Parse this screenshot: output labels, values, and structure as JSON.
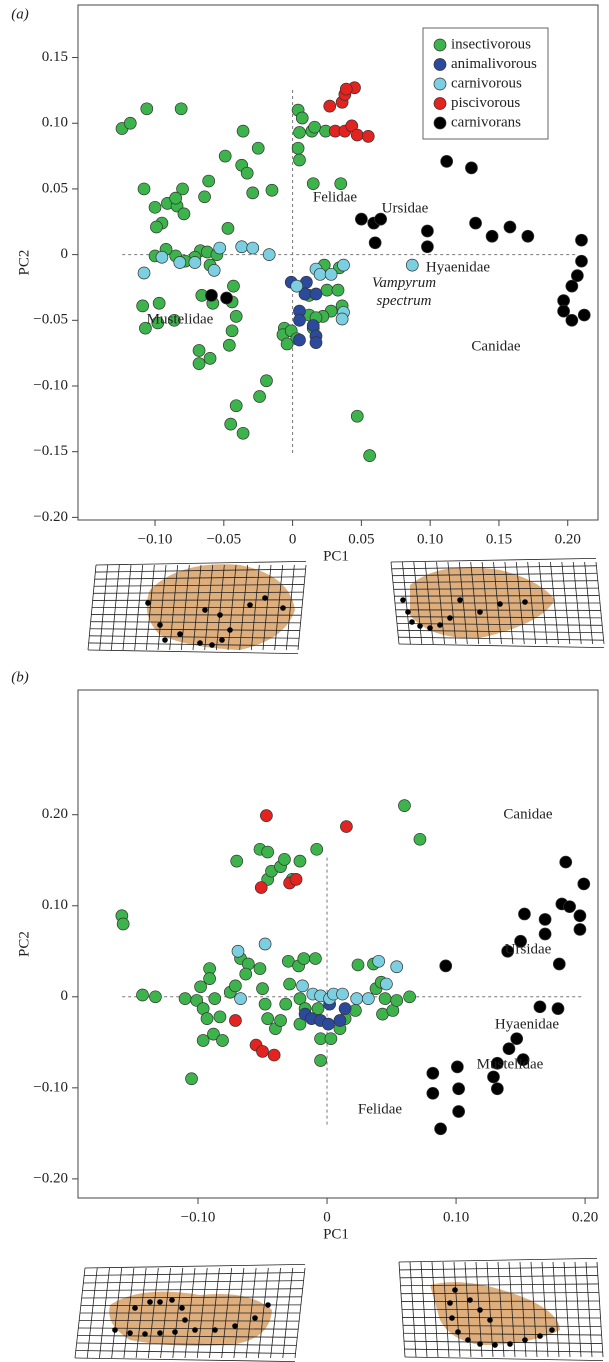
{
  "chart_data": [
    {
      "type": "scatter",
      "panel_label": "(a)",
      "x_label": "PC1",
      "y_label": "PC2",
      "xlim": [
        -0.156,
        0.222
      ],
      "ylim": [
        -0.202,
        0.19
      ],
      "xticks": [
        {
          "value": -0.1,
          "label": "−0.10"
        },
        {
          "value": -0.05,
          "label": "−0.05"
        },
        0,
        0.05,
        {
          "value": 0.1,
          "label": "0.10"
        },
        0.15,
        {
          "value": 0.2,
          "label": "0.20"
        }
      ],
      "yticks": [
        {
          "value": -0.2,
          "label": "−0.20"
        },
        {
          "value": -0.15,
          "label": "−0.15"
        },
        {
          "value": -0.1,
          "label": "−0.10"
        },
        {
          "value": -0.05,
          "label": "−0.05"
        },
        0,
        0.05,
        {
          "value": 0.1,
          "label": "0.10"
        },
        0.15
      ],
      "legend": "upper right",
      "annotations": [
        {
          "text": "Felidae"
        },
        {
          "text": "Ursidae"
        },
        {
          "text": "Hyaenidae"
        },
        {
          "text": "Vampyrum spectrum",
          "style": "italic"
        },
        {
          "text": "Mustelidae"
        },
        {
          "text": "Canidae"
        }
      ],
      "series": [
        {
          "name": "insectivorous",
          "color": "#3cb44b",
          "x": [
            -0.124,
            -0.118,
            -0.106,
            -0.081,
            -0.108,
            -0.1,
            -0.091,
            -0.084,
            -0.079,
            -0.08,
            -0.085,
            -0.095,
            -0.099,
            -0.064,
            -0.061,
            -0.049,
            -0.037,
            -0.033,
            -0.036,
            -0.025,
            -0.015,
            -0.029,
            -0.047,
            -0.067,
            -0.062,
            -0.055,
            -0.071,
            -0.06,
            -0.078,
            -0.085,
            -0.092,
            -0.1,
            -0.109,
            -0.097,
            -0.098,
            -0.107,
            -0.086,
            -0.066,
            -0.058,
            -0.043,
            -0.044,
            -0.041,
            -0.044,
            -0.046,
            -0.068,
            -0.068,
            -0.06,
            -0.019,
            -0.024,
            -0.041,
            -0.045,
            -0.036,
            0.004,
            0.005,
            0.014,
            0.007,
            0.016,
            0.024,
            0.004,
            0.005,
            0.015,
            0.035,
            0.023,
            0.034,
            0.025,
            0.036,
            0.028,
            0.022,
            0.015,
            0.012,
            -0.006,
            -0.007,
            -0.001,
            0.003,
            -0.004,
            0.017,
            0.047,
            0.056,
            0.012,
            0.033
          ],
          "values": [
            0.096,
            0.1,
            0.111,
            0.111,
            0.05,
            0.036,
            0.039,
            0.037,
            0.031,
            0.05,
            0.043,
            0.024,
            0.021,
            0.044,
            0.056,
            0.075,
            0.068,
            0.062,
            0.094,
            0.081,
            0.049,
            0.047,
            0.02,
            0.003,
            0.002,
            0.0,
            -0.002,
            -0.008,
            -0.005,
            -0.001,
            0.004,
            -0.001,
            -0.039,
            -0.037,
            -0.052,
            -0.056,
            -0.05,
            -0.031,
            -0.037,
            -0.024,
            -0.036,
            -0.047,
            -0.058,
            -0.069,
            -0.073,
            -0.083,
            -0.079,
            -0.096,
            -0.108,
            -0.115,
            -0.129,
            -0.136,
            0.11,
            0.093,
            0.094,
            0.104,
            0.097,
            0.094,
            0.081,
            0.072,
            0.054,
            0.054,
            -0.008,
            -0.01,
            -0.027,
            -0.039,
            -0.043,
            -0.047,
            -0.056,
            -0.046,
            -0.056,
            -0.061,
            -0.058,
            -0.064,
            -0.068,
            -0.048,
            -0.123,
            -0.153,
            -0.031,
            -0.027
          ]
        },
        {
          "name": "animalivorous",
          "color": "#2b4a9e",
          "x": [
            -0.001,
            0.01,
            0.009,
            0.017,
            0.005,
            0.005,
            0.015,
            0.017,
            0.017,
            0.005
          ],
          "values": [
            -0.021,
            -0.021,
            -0.03,
            -0.03,
            -0.043,
            -0.05,
            -0.054,
            -0.062,
            -0.067,
            -0.065
          ]
        },
        {
          "name": "carnivorous",
          "color": "#7ccfe0",
          "x": [
            -0.108,
            -0.095,
            -0.082,
            -0.071,
            -0.057,
            -0.053,
            -0.037,
            -0.029,
            -0.017,
            0.003,
            0.017,
            0.02,
            0.028,
            0.037,
            0.037,
            0.036,
            0.087
          ],
          "values": [
            -0.014,
            -0.002,
            -0.006,
            -0.006,
            -0.012,
            0.005,
            0.006,
            0.005,
            0.0,
            -0.024,
            -0.011,
            -0.015,
            -0.015,
            -0.008,
            -0.044,
            -0.049,
            -0.008
          ]
        },
        {
          "name": "piscivorous",
          "color": "#e3231f",
          "x": [
            0.027,
            0.036,
            0.038,
            0.045,
            0.039,
            0.031,
            0.038,
            0.043,
            0.047,
            0.055
          ],
          "values": [
            0.113,
            0.116,
            0.122,
            0.127,
            0.126,
            0.094,
            0.094,
            0.098,
            0.091,
            0.09
          ]
        },
        {
          "name": "carnivorans",
          "color": "#000000",
          "x": [
            -0.059,
            -0.048,
            0.05,
            0.059,
            0.064,
            0.06,
            0.098,
            0.098,
            0.112,
            0.13,
            0.133,
            0.145,
            0.158,
            0.171,
            0.21,
            0.21,
            0.207,
            0.203,
            0.197,
            0.197,
            0.203,
            0.212
          ],
          "values": [
            -0.031,
            -0.033,
            0.027,
            0.024,
            0.027,
            0.009,
            0.018,
            0.006,
            0.071,
            0.066,
            0.024,
            0.014,
            0.021,
            0.014,
            0.011,
            -0.005,
            -0.016,
            -0.024,
            -0.035,
            -0.043,
            -0.05,
            -0.046
          ]
        }
      ]
    },
    {
      "type": "scatter",
      "panel_label": "(b)",
      "x_label": "PC1",
      "y_label": "PC2",
      "xlim": [
        -0.193,
        0.21
      ],
      "ylim": [
        -0.221,
        0.337
      ],
      "xticks": [
        {
          "value": -0.1,
          "label": "−0.10"
        },
        0,
        {
          "value": 0.1,
          "label": "0.10"
        },
        {
          "value": 0.2,
          "label": "0.20"
        }
      ],
      "yticks": [
        {
          "value": -0.2,
          "label": "−0.20"
        },
        {
          "value": -0.1,
          "label": "−0.10"
        },
        0,
        {
          "value": 0.1,
          "label": "0.10"
        },
        {
          "value": 0.2,
          "label": "0.20"
        }
      ],
      "legend": false,
      "annotations": [
        {
          "text": "Canidae"
        },
        {
          "text": "Ursidae"
        },
        {
          "text": "Hyaenidae"
        },
        {
          "text": "Mustelidae"
        },
        {
          "text": "Felidae"
        }
      ],
      "series": [
        {
          "name": "insectivorous",
          "color": "#3cb44b",
          "x": [
            -0.159,
            -0.158,
            -0.143,
            -0.133,
            -0.105,
            -0.11,
            -0.101,
            -0.091,
            -0.091,
            -0.098,
            -0.096,
            -0.093,
            -0.088,
            -0.096,
            -0.087,
            -0.083,
            -0.081,
            -0.075,
            -0.071,
            -0.067,
            -0.061,
            -0.063,
            -0.07,
            -0.052,
            -0.046,
            -0.046,
            -0.043,
            -0.036,
            -0.033,
            -0.021,
            -0.008,
            -0.027,
            -0.052,
            -0.05,
            -0.048,
            -0.046,
            -0.04,
            -0.03,
            -0.022,
            -0.029,
            -0.021,
            -0.032,
            -0.036,
            -0.021,
            -0.017,
            -0.007,
            -0.005,
            -0.005,
            0.003,
            0.01,
            0.014,
            0.022,
            0.024,
            0.036,
            0.038,
            0.042,
            0.045,
            0.043,
            0.051,
            0.054,
            0.064,
            0.072,
            0.06,
            -0.018,
            -0.009
          ],
          "values": [
            0.089,
            0.08,
            0.002,
            0.0,
            -0.09,
            -0.002,
            -0.004,
            0.031,
            0.02,
            0.011,
            -0.013,
            -0.024,
            -0.041,
            -0.048,
            -0.002,
            -0.022,
            -0.048,
            0.005,
            0.012,
            0.042,
            0.036,
            0.025,
            0.149,
            0.162,
            0.159,
            0.129,
            0.138,
            0.143,
            0.151,
            0.149,
            0.162,
            0.129,
            0.031,
            0.009,
            -0.008,
            -0.024,
            -0.035,
            0.039,
            0.034,
            0.014,
            -0.002,
            -0.008,
            -0.026,
            -0.03,
            -0.013,
            -0.013,
            -0.046,
            -0.07,
            -0.046,
            -0.035,
            -0.024,
            -0.015,
            0.035,
            0.036,
            0.009,
            0.016,
            -0.002,
            -0.019,
            -0.015,
            -0.004,
            0.0,
            0.173,
            0.21,
            0.042,
            0.042
          ]
        },
        {
          "name": "animalivorous",
          "color": "#2b4a9e",
          "x": [
            -0.017,
            -0.012,
            -0.005,
            0.001,
            0.01,
            0.014,
            0.002
          ],
          "values": [
            -0.019,
            -0.024,
            -0.026,
            -0.03,
            -0.026,
            -0.013,
            -0.008
          ]
        },
        {
          "name": "carnivorous",
          "color": "#7ccfe0",
          "x": [
            -0.067,
            -0.069,
            -0.048,
            -0.019,
            -0.011,
            -0.005,
            0.002,
            0.005,
            0.012,
            0.04,
            0.054,
            0.046,
            0.032,
            0.023
          ],
          "values": [
            -0.002,
            0.05,
            0.058,
            0.012,
            0.003,
            0.001,
            -0.002,
            0.003,
            0.003,
            0.039,
            0.033,
            0.014,
            -0.002,
            -0.002
          ]
        },
        {
          "name": "piscivorous",
          "color": "#e3231f",
          "x": [
            -0.047,
            -0.051,
            -0.029,
            -0.024,
            0.015,
            -0.071,
            -0.055,
            -0.05,
            -0.041
          ],
          "values": [
            0.199,
            0.12,
            0.125,
            0.129,
            0.187,
            -0.026,
            -0.053,
            -0.06,
            -0.064
          ]
        },
        {
          "name": "carnivorans",
          "color": "#000000",
          "x": [
            0.092,
            0.153,
            0.15,
            0.14,
            0.169,
            0.169,
            0.182,
            0.188,
            0.196,
            0.196,
            0.199,
            0.185,
            0.18,
            0.165,
            0.179,
            0.147,
            0.141,
            0.132,
            0.129,
            0.132,
            0.152,
            0.082,
            0.082,
            0.101,
            0.102,
            0.102,
            0.088
          ],
          "values": [
            0.034,
            0.091,
            0.061,
            0.05,
            0.085,
            0.069,
            0.102,
            0.099,
            0.089,
            0.074,
            0.124,
            0.148,
            0.036,
            -0.011,
            -0.013,
            -0.046,
            -0.057,
            -0.073,
            -0.088,
            -0.101,
            -0.069,
            -0.084,
            -0.106,
            -0.077,
            -0.101,
            -0.126,
            -0.145
          ]
        }
      ]
    }
  ]
}
